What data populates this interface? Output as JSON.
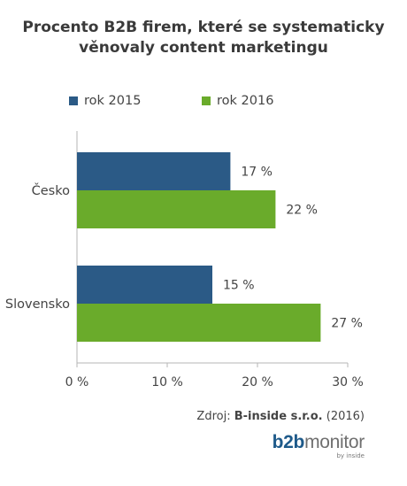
{
  "title_line1": "Procento B2B firem, které se systematicky",
  "title_line2": "věnovaly content marketingu",
  "colors": {
    "series_2015": "#2b5a86",
    "series_2016": "#6aab2b"
  },
  "chart_data": {
    "type": "bar",
    "orientation": "horizontal",
    "categories": [
      "Česko",
      "Slovensko"
    ],
    "series": [
      {
        "name": "rok 2015",
        "values": [
          17,
          15
        ],
        "labels": [
          "17 %",
          "15 %"
        ]
      },
      {
        "name": "rok 2016",
        "values": [
          22,
          27
        ],
        "labels": [
          "22 %",
          "27 %"
        ]
      }
    ],
    "xlim": [
      0,
      30
    ],
    "xticks": [
      0,
      10,
      20,
      30
    ],
    "xtick_labels": [
      "0 %",
      "10 %",
      "20 %",
      "30 %"
    ],
    "legend_position": "top-left",
    "grid": false
  },
  "source": {
    "prefix": "Zdroj: ",
    "name": "B-inside s.r.o.",
    "year": " (2016)"
  },
  "logo": {
    "b2b": "b2b",
    "monitor": "monitor",
    "byline": "by inside"
  }
}
